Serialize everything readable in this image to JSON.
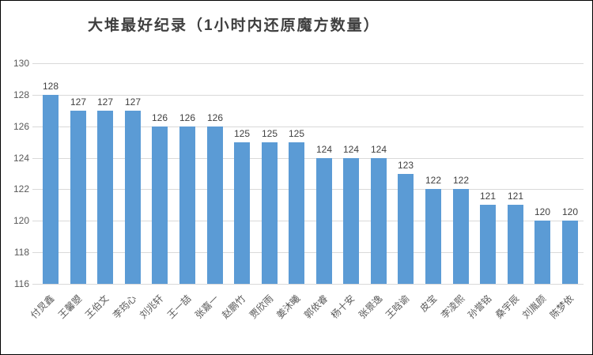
{
  "chart": {
    "title": "大堆最好纪录（1小时内还原魔方数量）"
  },
  "chart_data": {
    "type": "bar",
    "title": "大堆最好纪录（1小时内还原魔方数量）",
    "categories": [
      "付炅鑫",
      "王馨曌",
      "王伯文",
      "李筠心",
      "刘兆轩",
      "王一喆",
      "张嘉一",
      "赵鹏竹",
      "贾欣雨",
      "姜沐曦",
      "郭依睿",
      "杨十安",
      "张景逸",
      "王晗谕",
      "皮宝",
      "李凌熙",
      "孙誉铭",
      "桑宇辰",
      "刘胤颜",
      "陈梦依"
    ],
    "values": [
      128,
      127,
      127,
      127,
      126,
      126,
      126,
      125,
      125,
      125,
      124,
      124,
      124,
      123,
      122,
      122,
      121,
      121,
      120,
      120
    ],
    "xlabel": "",
    "ylabel": "",
    "ylim": [
      116,
      130
    ],
    "yticks": [
      116,
      118,
      120,
      122,
      124,
      126,
      128,
      130
    ],
    "grid": true,
    "legend": false,
    "data_labels": true,
    "bar_color": "#5b9bd5",
    "gridline_color": "#d9d9d9",
    "axis_label_color": "#595959",
    "data_label_color": "#404040",
    "title_color": "#3f3f3f"
  }
}
